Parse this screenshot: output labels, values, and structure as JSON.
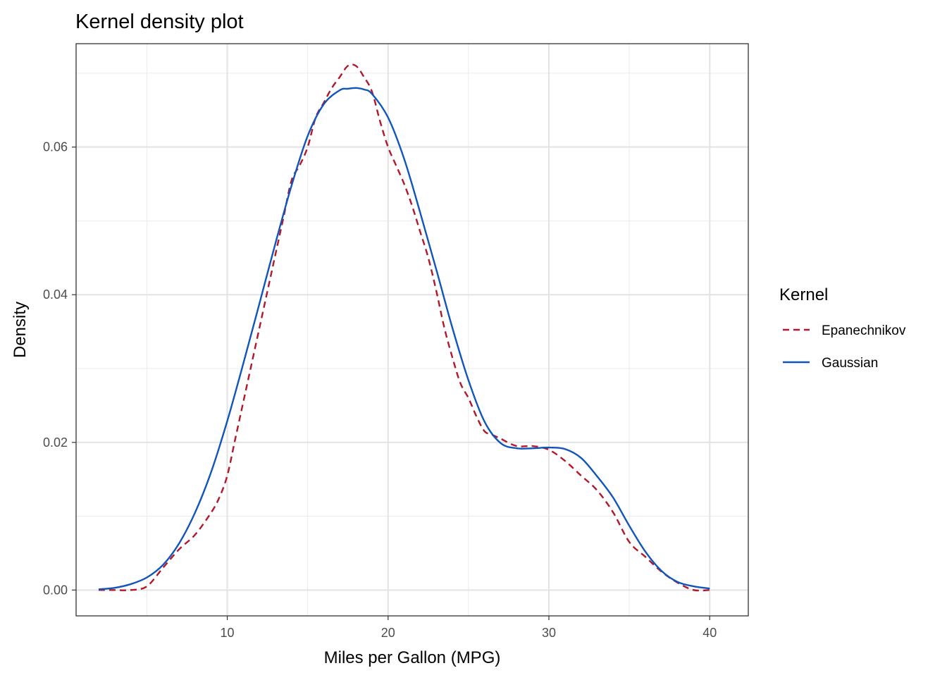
{
  "chart_data": {
    "type": "line",
    "title": "Kernel density plot",
    "xlabel": "Miles per Gallon (MPG)",
    "ylabel": "Density",
    "xlim": [
      0.6,
      42.4
    ],
    "ylim": [
      -0.0035,
      0.074
    ],
    "x_ticks": [
      10,
      20,
      30,
      40
    ],
    "x_tick_labels": [
      "10",
      "20",
      "30",
      "40"
    ],
    "x_minor_ticks": [
      5,
      15,
      25,
      35
    ],
    "y_ticks": [
      0,
      0.02,
      0.04,
      0.06
    ],
    "y_tick_labels": [
      "0.00",
      "0.02",
      "0.04",
      "0.06"
    ],
    "y_minor_ticks": [
      0.01,
      0.03,
      0.05,
      0.07
    ],
    "grid": true,
    "legend": {
      "title": "Kernel",
      "position": "right"
    },
    "series": [
      {
        "name": "Epanechnikov",
        "color": "#b2182b",
        "dash": "dashed",
        "x": [
          2.0,
          3.0,
          4.0,
          5.0,
          6.0,
          7.0,
          8.0,
          9.0,
          9.5,
          10.0,
          10.5,
          11.0,
          11.5,
          12.0,
          12.5,
          13.0,
          13.5,
          14.0,
          14.5,
          15.0,
          15.5,
          16.0,
          16.5,
          17.0,
          17.5,
          18.0,
          18.5,
          19.0,
          19.5,
          20.0,
          20.5,
          21.0,
          21.5,
          22.0,
          22.5,
          23.0,
          23.5,
          24.0,
          24.5,
          25.0,
          25.5,
          26.0,
          26.5,
          27.0,
          28.0,
          29.0,
          30.0,
          31.0,
          32.0,
          33.0,
          34.0,
          35.0,
          36.0,
          37.0,
          38.0,
          39.0,
          40.0
        ],
        "values": [
          0.0,
          0.0,
          0.0,
          0.0005,
          0.003,
          0.0055,
          0.0075,
          0.0105,
          0.0125,
          0.0155,
          0.0205,
          0.0255,
          0.0305,
          0.0355,
          0.0405,
          0.0455,
          0.0505,
          0.0555,
          0.0575,
          0.06,
          0.064,
          0.066,
          0.068,
          0.0695,
          0.071,
          0.071,
          0.0695,
          0.0675,
          0.0635,
          0.06,
          0.0575,
          0.055,
          0.052,
          0.0485,
          0.045,
          0.0405,
          0.0355,
          0.0315,
          0.028,
          0.026,
          0.0235,
          0.0215,
          0.021,
          0.0205,
          0.0195,
          0.0195,
          0.019,
          0.0175,
          0.0155,
          0.0135,
          0.0105,
          0.0065,
          0.0045,
          0.0025,
          0.001,
          0.0,
          0.0
        ]
      },
      {
        "name": "Gaussian",
        "color": "#1155bb",
        "dash": "solid",
        "x": [
          2.0,
          3.0,
          4.0,
          5.0,
          6.0,
          7.0,
          8.0,
          9.0,
          10.0,
          11.0,
          12.0,
          13.0,
          14.0,
          15.0,
          16.0,
          17.0,
          17.5,
          18.0,
          18.5,
          19.0,
          20.0,
          21.0,
          22.0,
          23.0,
          24.0,
          25.0,
          26.0,
          27.0,
          28.0,
          29.0,
          30.0,
          31.0,
          32.0,
          33.0,
          34.0,
          35.0,
          36.0,
          37.0,
          38.0,
          39.0,
          40.0
        ],
        "values": [
          0.0001,
          0.0003,
          0.0008,
          0.0017,
          0.0034,
          0.0063,
          0.0105,
          0.016,
          0.0229,
          0.0307,
          0.0388,
          0.047,
          0.0548,
          0.0615,
          0.0658,
          0.0677,
          0.0679,
          0.068,
          0.0678,
          0.0672,
          0.064,
          0.0584,
          0.0511,
          0.0434,
          0.0355,
          0.0284,
          0.0228,
          0.0199,
          0.0192,
          0.0192,
          0.0193,
          0.0191,
          0.0179,
          0.0154,
          0.0125,
          0.0087,
          0.0052,
          0.0026,
          0.0011,
          0.0005,
          0.0002
        ]
      }
    ]
  }
}
